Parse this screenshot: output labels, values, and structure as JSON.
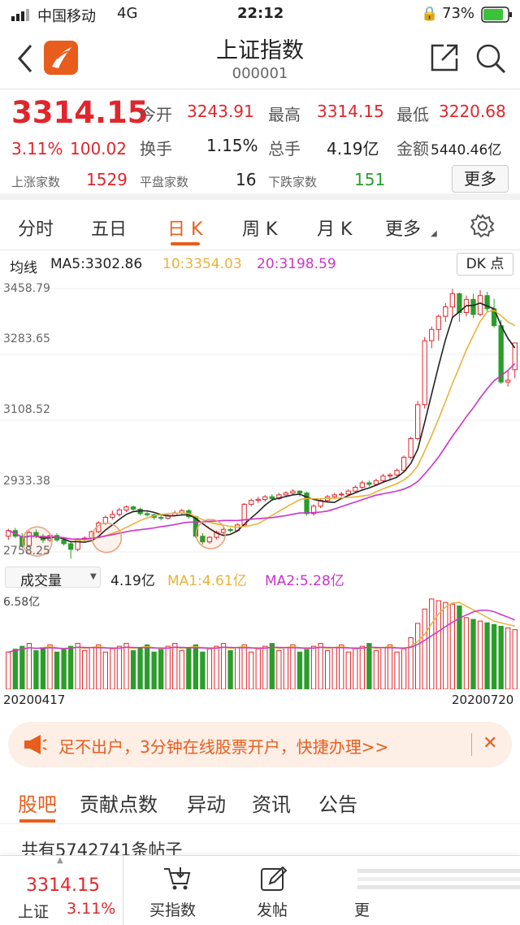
{
  "statusbar": {
    "carrier": "中国移动",
    "network": "4G",
    "time": "22:12",
    "battery": "73%"
  },
  "header": {
    "title": "上证指数",
    "code": "000001"
  },
  "quote": {
    "price": "3314.15",
    "pct": "3.11%",
    "change": "100.02",
    "open_label": "今开",
    "open": "3243.91",
    "high_label": "最高",
    "high": "3314.15",
    "low_label": "最低",
    "low": "3220.68",
    "turnover_label": "换手",
    "turnover": "1.15%",
    "hands_label": "总手",
    "hands": "4.19亿",
    "amount_label": "金额",
    "amount": "5440.46亿",
    "up_label": "上涨家数",
    "up": "1529",
    "flat_label": "平盘家数",
    "flat": "16",
    "down_label": "下跌家数",
    "down": "151",
    "more_button": "更多"
  },
  "ktabs": [
    "分时",
    "五日",
    "日 K",
    "周 K",
    "月 K",
    "更多"
  ],
  "ma_legend": {
    "label": "均线",
    "ma5": "MA5:3302.86",
    "ma10": "10:3354.03",
    "ma20": "20:3198.59",
    "dk_button": "DK 点"
  },
  "kchart_axis": [
    "3458.79",
    "3283.65",
    "3108.52",
    "2933.38",
    "2758.25"
  ],
  "volume": {
    "selector": "成交量",
    "value": "4.19亿",
    "ma1": "MA1:4.61亿",
    "ma2": "MA2:5.28亿",
    "max": "6.58亿"
  },
  "dates": {
    "start": "20200417",
    "end": "20200720"
  },
  "ad": {
    "text": "足不出户，3分钟在线股票开户，快捷办理>>"
  },
  "btabs": [
    "股吧",
    "贡献点数",
    "异动",
    "资讯",
    "公告"
  ],
  "posts": {
    "text": "共有5742741条帖子"
  },
  "footer": {
    "price": "3314.15",
    "name": "上证",
    "pct": "3.11%",
    "buy": "买指数",
    "post": "发帖",
    "more": "更"
  },
  "colors": {
    "up": "#e0262c",
    "down": "#2a9d2a",
    "ma5": "#222222",
    "ma10": "#e8b33a",
    "ma20": "#cc33cc",
    "accent": "#e85d1c"
  },
  "chart_data": {
    "type": "candlestick",
    "ylim": [
      2758.25,
      3458.79
    ],
    "candles": [
      [
        2800,
        2815,
        2790,
        2820
      ],
      [
        2815,
        2800,
        2795,
        2822
      ],
      [
        2800,
        2775,
        2768,
        2808
      ],
      [
        2775,
        2810,
        2770,
        2815
      ],
      [
        2810,
        2800,
        2795,
        2818
      ],
      [
        2800,
        2790,
        2782,
        2806
      ],
      [
        2790,
        2802,
        2785,
        2806
      ],
      [
        2802,
        2790,
        2785,
        2808
      ],
      [
        2790,
        2780,
        2775,
        2796
      ],
      [
        2780,
        2765,
        2740,
        2785
      ],
      [
        2765,
        2790,
        2760,
        2795
      ],
      [
        2790,
        2795,
        2786,
        2800
      ],
      [
        2795,
        2812,
        2792,
        2815
      ],
      [
        2812,
        2835,
        2808,
        2840
      ],
      [
        2835,
        2850,
        2830,
        2855
      ],
      [
        2850,
        2858,
        2845,
        2868
      ],
      [
        2858,
        2870,
        2852,
        2876
      ],
      [
        2870,
        2878,
        2864,
        2882
      ],
      [
        2878,
        2872,
        2866,
        2882
      ],
      [
        2872,
        2860,
        2855,
        2876
      ],
      [
        2860,
        2857,
        2852,
        2866
      ],
      [
        2857,
        2850,
        2844,
        2860
      ],
      [
        2850,
        2848,
        2842,
        2856
      ],
      [
        2848,
        2855,
        2845,
        2860
      ],
      [
        2855,
        2862,
        2852,
        2868
      ],
      [
        2862,
        2868,
        2857,
        2873
      ],
      [
        2868,
        2852,
        2846,
        2872
      ],
      [
        2852,
        2800,
        2795,
        2855
      ],
      [
        2800,
        2785,
        2778,
        2808
      ],
      [
        2785,
        2797,
        2780,
        2800
      ],
      [
        2797,
        2810,
        2792,
        2815
      ],
      [
        2810,
        2818,
        2805,
        2822
      ],
      [
        2818,
        2815,
        2810,
        2822
      ],
      [
        2815,
        2830,
        2812,
        2835
      ],
      [
        2830,
        2885,
        2828,
        2888
      ],
      [
        2885,
        2895,
        2880,
        2900
      ],
      [
        2895,
        2898,
        2888,
        2905
      ],
      [
        2898,
        2905,
        2892,
        2910
      ],
      [
        2905,
        2900,
        2895,
        2912
      ],
      [
        2900,
        2910,
        2896,
        2915
      ],
      [
        2910,
        2915,
        2905,
        2920
      ],
      [
        2915,
        2920,
        2910,
        2925
      ],
      [
        2920,
        2915,
        2905,
        2922
      ],
      [
        2915,
        2860,
        2855,
        2918
      ],
      [
        2860,
        2880,
        2855,
        2885
      ],
      [
        2880,
        2895,
        2875,
        2900
      ],
      [
        2895,
        2905,
        2890,
        2910
      ],
      [
        2905,
        2910,
        2898,
        2915
      ],
      [
        2910,
        2912,
        2905,
        2918
      ],
      [
        2912,
        2920,
        2908,
        2925
      ],
      [
        2920,
        2930,
        2915,
        2935
      ],
      [
        2930,
        2942,
        2925,
        2948
      ],
      [
        2942,
        2938,
        2932,
        2948
      ],
      [
        2938,
        2948,
        2934,
        2953
      ],
      [
        2948,
        2960,
        2944,
        2966
      ],
      [
        2960,
        2963,
        2950,
        2968
      ],
      [
        2963,
        2975,
        2958,
        2980
      ],
      [
        2975,
        3010,
        2970,
        3015
      ],
      [
        3010,
        3060,
        3005,
        3065
      ],
      [
        3060,
        3150,
        3055,
        3160
      ],
      [
        3150,
        3320,
        3140,
        3330
      ],
      [
        3320,
        3350,
        3300,
        3358
      ],
      [
        3350,
        3385,
        3320,
        3390
      ],
      [
        3385,
        3410,
        3370,
        3420
      ],
      [
        3410,
        3445,
        3380,
        3458
      ],
      [
        3445,
        3395,
        3370,
        3448
      ],
      [
        3395,
        3430,
        3385,
        3440
      ],
      [
        3430,
        3390,
        3380,
        3445
      ],
      [
        3390,
        3440,
        3385,
        3455
      ],
      [
        3440,
        3405,
        3395,
        3450
      ],
      [
        3405,
        3360,
        3355,
        3432
      ],
      [
        3360,
        3210,
        3205,
        3375
      ],
      [
        3210,
        3215,
        3198,
        3240
      ],
      [
        3243,
        3314,
        3220,
        3314
      ]
    ]
  }
}
